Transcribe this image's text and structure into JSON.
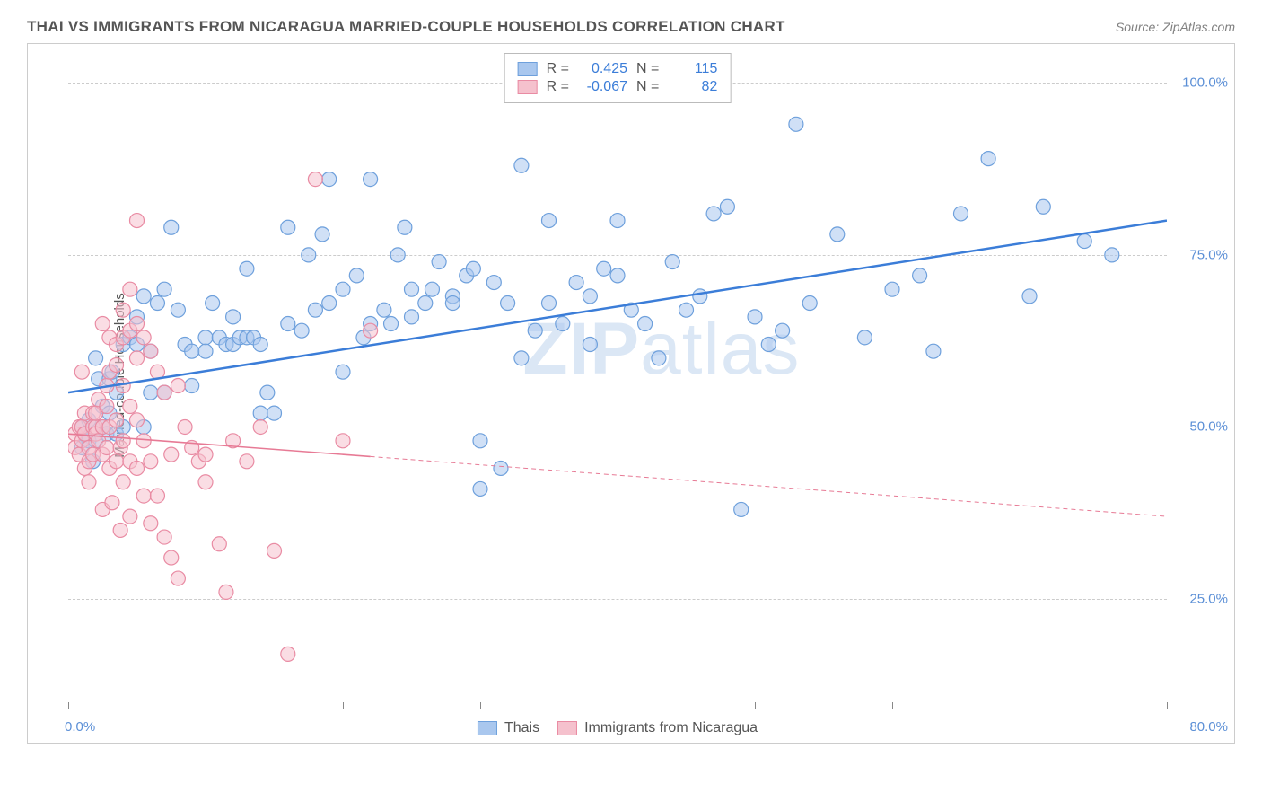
{
  "header": {
    "title": "THAI VS IMMIGRANTS FROM NICARAGUA MARRIED-COUPLE HOUSEHOLDS CORRELATION CHART",
    "source": "Source: ZipAtlas.com"
  },
  "chart": {
    "type": "scatter",
    "ylabel": "Married-couple Households",
    "watermark": "ZIPatlas",
    "xlim": [
      0,
      80
    ],
    "ylim": [
      10,
      105
    ],
    "x_ticks": [
      0,
      10,
      20,
      30,
      40,
      50,
      60,
      70,
      80
    ],
    "x_tick_labels_shown": {
      "0": "0.0%",
      "80": "80.0%"
    },
    "y_ticks": [
      25,
      50,
      75,
      100
    ],
    "y_tick_labels": [
      "25.0%",
      "50.0%",
      "75.0%",
      "100.0%"
    ],
    "background_color": "#ffffff",
    "grid_color": "#cccccc",
    "border_color": "#cccccc",
    "tick_label_color": "#5b8fd6",
    "axis_label_color": "#555555",
    "marker_radius": 8,
    "marker_opacity": 0.55,
    "series": [
      {
        "name": "Thais",
        "fill": "#a9c7ee",
        "stroke": "#6ea0dc",
        "R": "0.425",
        "N": "115",
        "trend": {
          "x1": 0,
          "y1": 55,
          "x2": 80,
          "y2": 80,
          "color": "#3b7dd8",
          "width": 2.5,
          "dash": null,
          "solid_max_x": 80
        },
        "points": [
          [
            1,
            47
          ],
          [
            1,
            50
          ],
          [
            1.2,
            49
          ],
          [
            1.5,
            48
          ],
          [
            1.5,
            51
          ],
          [
            1.8,
            45
          ],
          [
            2,
            48
          ],
          [
            2,
            60
          ],
          [
            2.2,
            57
          ],
          [
            2.5,
            50
          ],
          [
            2.5,
            53
          ],
          [
            2.8,
            49
          ],
          [
            3,
            57
          ],
          [
            3,
            52
          ],
          [
            3.2,
            58
          ],
          [
            3.5,
            49
          ],
          [
            3.5,
            55
          ],
          [
            4,
            62
          ],
          [
            4,
            50
          ],
          [
            4.5,
            63
          ],
          [
            5,
            62
          ],
          [
            5,
            66
          ],
          [
            5.5,
            69
          ],
          [
            5.5,
            50
          ],
          [
            6,
            61
          ],
          [
            6,
            55
          ],
          [
            6.5,
            68
          ],
          [
            7,
            70
          ],
          [
            7,
            55
          ],
          [
            7.5,
            79
          ],
          [
            8,
            67
          ],
          [
            8.5,
            62
          ],
          [
            9,
            56
          ],
          [
            9,
            61
          ],
          [
            10,
            63
          ],
          [
            10,
            61
          ],
          [
            10.5,
            68
          ],
          [
            11,
            63
          ],
          [
            11.5,
            62
          ],
          [
            12,
            62
          ],
          [
            12,
            66
          ],
          [
            12.5,
            63
          ],
          [
            13,
            73
          ],
          [
            13,
            63
          ],
          [
            13.5,
            63
          ],
          [
            14,
            62
          ],
          [
            14,
            52
          ],
          [
            14.5,
            55
          ],
          [
            15,
            52
          ],
          [
            16,
            65
          ],
          [
            16,
            79
          ],
          [
            17,
            64
          ],
          [
            17.5,
            75
          ],
          [
            18,
            67
          ],
          [
            18.5,
            78
          ],
          [
            19,
            68
          ],
          [
            19,
            86
          ],
          [
            20,
            58
          ],
          [
            20,
            70
          ],
          [
            21,
            72
          ],
          [
            21.5,
            63
          ],
          [
            22,
            65
          ],
          [
            22,
            86
          ],
          [
            23,
            67
          ],
          [
            23.5,
            65
          ],
          [
            24,
            75
          ],
          [
            24.5,
            79
          ],
          [
            25,
            70
          ],
          [
            25,
            66
          ],
          [
            26,
            68
          ],
          [
            26.5,
            70
          ],
          [
            27,
            74
          ],
          [
            28,
            69
          ],
          [
            28,
            68
          ],
          [
            29,
            72
          ],
          [
            29.5,
            73
          ],
          [
            30,
            48
          ],
          [
            30,
            41
          ],
          [
            31,
            71
          ],
          [
            31.5,
            44
          ],
          [
            32,
            68
          ],
          [
            33,
            60
          ],
          [
            33,
            88
          ],
          [
            34,
            64
          ],
          [
            35,
            68
          ],
          [
            35,
            80
          ],
          [
            36,
            65
          ],
          [
            37,
            71
          ],
          [
            38,
            69
          ],
          [
            38,
            62
          ],
          [
            39,
            73
          ],
          [
            40,
            72
          ],
          [
            40,
            80
          ],
          [
            41,
            67
          ],
          [
            42,
            65
          ],
          [
            43,
            60
          ],
          [
            44,
            74
          ],
          [
            45,
            67
          ],
          [
            46,
            69
          ],
          [
            47,
            81
          ],
          [
            48,
            82
          ],
          [
            49,
            38
          ],
          [
            50,
            66
          ],
          [
            51,
            62
          ],
          [
            52,
            64
          ],
          [
            53,
            94
          ],
          [
            54,
            68
          ],
          [
            56,
            78
          ],
          [
            58,
            63
          ],
          [
            60,
            70
          ],
          [
            62,
            72
          ],
          [
            63,
            61
          ],
          [
            65,
            81
          ],
          [
            67,
            89
          ],
          [
            70,
            69
          ],
          [
            71,
            82
          ],
          [
            74,
            77
          ],
          [
            76,
            75
          ]
        ]
      },
      {
        "name": "Immigrants from Nicaragua",
        "fill": "#f5c1cd",
        "stroke": "#e98ba3",
        "R": "-0.067",
        "N": "82",
        "trend": {
          "x1": 0,
          "y1": 49,
          "x2": 80,
          "y2": 37,
          "color": "#e77a95",
          "width": 1.6,
          "dash": "5,4",
          "solid_max_x": 22
        },
        "points": [
          [
            0.5,
            49
          ],
          [
            0.5,
            47
          ],
          [
            0.8,
            50
          ],
          [
            0.8,
            46
          ],
          [
            1,
            48
          ],
          [
            1,
            50
          ],
          [
            1,
            58
          ],
          [
            1.2,
            44
          ],
          [
            1.2,
            52
          ],
          [
            1.2,
            49
          ],
          [
            1.5,
            45
          ],
          [
            1.5,
            47
          ],
          [
            1.5,
            42
          ],
          [
            1.8,
            50
          ],
          [
            1.8,
            52
          ],
          [
            1.8,
            46
          ],
          [
            2,
            50
          ],
          [
            2,
            49
          ],
          [
            2,
            52
          ],
          [
            2.2,
            54
          ],
          [
            2.2,
            48
          ],
          [
            2.5,
            65
          ],
          [
            2.5,
            50
          ],
          [
            2.5,
            46
          ],
          [
            2.5,
            38
          ],
          [
            2.8,
            53
          ],
          [
            2.8,
            56
          ],
          [
            2.8,
            47
          ],
          [
            3,
            63
          ],
          [
            3,
            58
          ],
          [
            3,
            44
          ],
          [
            3,
            50
          ],
          [
            3.2,
            39
          ],
          [
            3.5,
            62
          ],
          [
            3.5,
            59
          ],
          [
            3.5,
            51
          ],
          [
            3.5,
            45
          ],
          [
            3.8,
            47
          ],
          [
            3.8,
            35
          ],
          [
            4,
            67
          ],
          [
            4,
            56
          ],
          [
            4,
            63
          ],
          [
            4,
            48
          ],
          [
            4,
            42
          ],
          [
            4.5,
            70
          ],
          [
            4.5,
            64
          ],
          [
            4.5,
            53
          ],
          [
            4.5,
            45
          ],
          [
            4.5,
            37
          ],
          [
            5,
            80
          ],
          [
            5,
            65
          ],
          [
            5,
            60
          ],
          [
            5,
            51
          ],
          [
            5,
            44
          ],
          [
            5.5,
            63
          ],
          [
            5.5,
            48
          ],
          [
            5.5,
            40
          ],
          [
            6,
            61
          ],
          [
            6,
            45
          ],
          [
            6,
            36
          ],
          [
            6.5,
            58
          ],
          [
            6.5,
            40
          ],
          [
            7,
            55
          ],
          [
            7,
            34
          ],
          [
            7.5,
            46
          ],
          [
            7.5,
            31
          ],
          [
            8,
            56
          ],
          [
            8,
            28
          ],
          [
            8.5,
            50
          ],
          [
            9,
            47
          ],
          [
            9.5,
            45
          ],
          [
            10,
            46
          ],
          [
            10,
            42
          ],
          [
            11,
            33
          ],
          [
            11.5,
            26
          ],
          [
            12,
            48
          ],
          [
            13,
            45
          ],
          [
            14,
            50
          ],
          [
            15,
            32
          ],
          [
            16,
            17
          ],
          [
            18,
            86
          ],
          [
            20,
            48
          ],
          [
            22,
            64
          ]
        ]
      }
    ]
  },
  "legend_top": {
    "rows": [
      {
        "swatch_fill": "#a9c7ee",
        "swatch_stroke": "#6ea0dc",
        "R_label": "R =",
        "R_val": "0.425",
        "N_label": "N =",
        "N_val": "115"
      },
      {
        "swatch_fill": "#f5c1cd",
        "swatch_stroke": "#e98ba3",
        "R_label": "R =",
        "R_val": "-0.067",
        "N_label": "N =",
        "N_val": "82"
      }
    ]
  },
  "legend_bottom": {
    "items": [
      {
        "swatch_fill": "#a9c7ee",
        "swatch_stroke": "#6ea0dc",
        "label": "Thais"
      },
      {
        "swatch_fill": "#f5c1cd",
        "swatch_stroke": "#e98ba3",
        "label": "Immigrants from Nicaragua"
      }
    ]
  }
}
